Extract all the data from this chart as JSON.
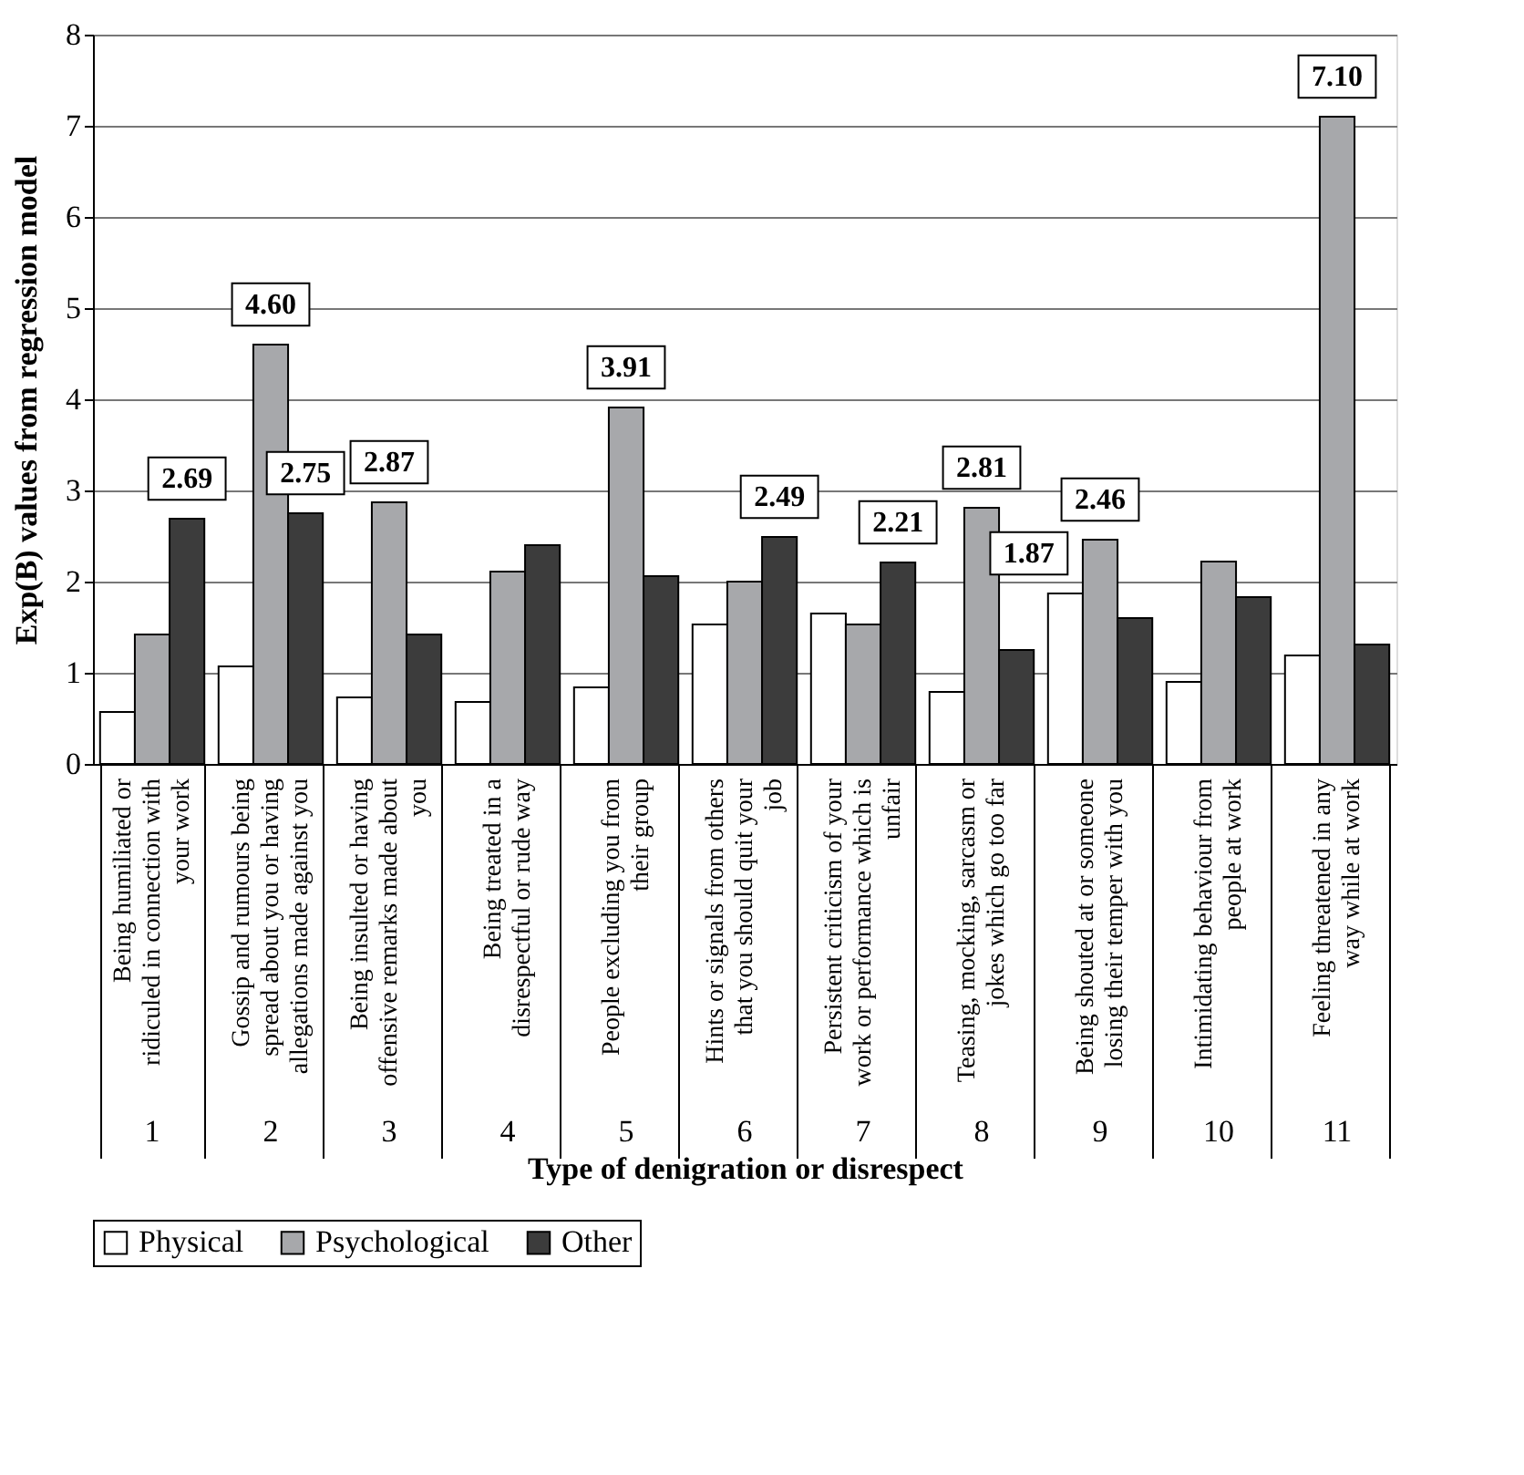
{
  "chart_data": {
    "type": "bar",
    "xlabel": "Type of denigration or disrespect",
    "ylabel": "Exp(B) values from regression model",
    "categories": [
      "Being humiliated or ridiculed in connection with your work",
      "Gossip and rumours being spread about you or having allegations made against you",
      "Being insulted or having offensive remarks made about you",
      "Being treated in a disrespectful or rude way",
      "People excluding you from their group",
      "Hints or signals from others that you should quit your job",
      "Persistent criticism of your work or performance which is unfair",
      "Teasing, mocking, sarcasm or jokes which go too far",
      "Being shouted at or someone losing their temper with you",
      "Intimidating behaviour from people at work",
      "Feeling threatened in any way while at work"
    ],
    "series": [
      {
        "name": "Physical",
        "color": "#ffffff",
        "values": [
          0.57,
          1.07,
          0.73,
          0.68,
          0.84,
          1.53,
          1.65,
          0.79,
          1.87,
          0.9,
          1.19
        ],
        "value_labels": [
          null,
          null,
          null,
          null,
          null,
          null,
          null,
          null,
          "1.87",
          null,
          null
        ]
      },
      {
        "name": "Psychological",
        "color": "#a7a8ab",
        "values": [
          1.42,
          4.6,
          2.87,
          2.11,
          3.91,
          2.0,
          1.53,
          2.81,
          2.46,
          2.22,
          7.1
        ],
        "value_labels": [
          null,
          "4.60",
          "2.87",
          null,
          "3.91",
          null,
          null,
          "2.81",
          "2.46",
          null,
          "7.10"
        ]
      },
      {
        "name": "Other",
        "color": "#3c3c3c",
        "values": [
          2.69,
          2.75,
          1.42,
          2.4,
          2.06,
          2.49,
          2.21,
          1.25,
          1.6,
          1.83,
          1.31
        ],
        "value_labels": [
          "2.69",
          "2.75",
          null,
          null,
          null,
          "2.49",
          "2.21",
          null,
          null,
          null,
          null
        ]
      }
    ],
    "annotations": [
      "1",
      "2",
      "3",
      "4",
      "5",
      "6",
      "7",
      "8",
      "9",
      "10",
      "11"
    ],
    "ylim": [
      0,
      8
    ],
    "yticks": [
      0,
      1,
      2,
      3,
      4,
      5,
      6,
      7,
      8
    ],
    "grid": "y",
    "legend": "bottom"
  }
}
